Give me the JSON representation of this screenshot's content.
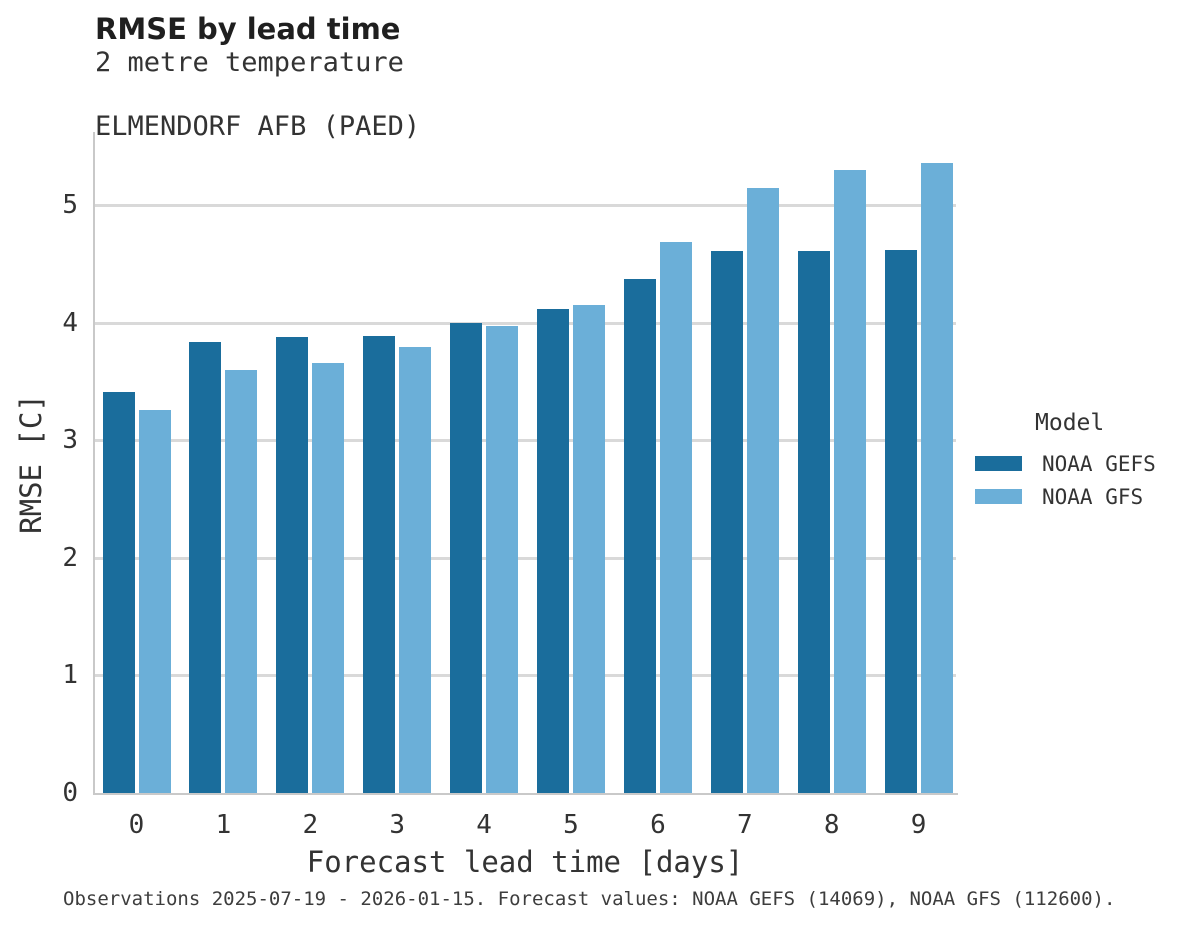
{
  "header": {
    "title": "RMSE by lead time",
    "subtitle1": "2 metre temperature",
    "subtitle2": "ELMENDORF AFB (PAED)"
  },
  "caption": "Observations 2025-07-19 - 2026-01-15. Forecast values: NOAA GEFS (14069), NOAA GFS (112600).",
  "chart_data": {
    "type": "bar",
    "title": "RMSE by lead time",
    "subtitle": [
      "2 metre temperature",
      "ELMENDORF AFB (PAED)"
    ],
    "categories": [
      "0",
      "1",
      "2",
      "3",
      "4",
      "5",
      "6",
      "7",
      "8",
      "9"
    ],
    "series": [
      {
        "name": "NOAA GEFS",
        "color": "#1A6D9C",
        "values": [
          3.41,
          3.84,
          3.88,
          3.89,
          4.0,
          4.12,
          4.37,
          4.61,
          4.61,
          4.62
        ]
      },
      {
        "name": "NOAA GFS",
        "color": "#6BAFD8",
        "values": [
          3.26,
          3.6,
          3.66,
          3.79,
          3.97,
          4.15,
          4.69,
          5.15,
          5.3,
          5.36
        ]
      }
    ],
    "xlabel": "Forecast lead time [days]",
    "ylabel": "RMSE [C]",
    "ylim": [
      0,
      5.64
    ],
    "yticks": [
      0,
      1,
      2,
      3,
      4,
      5
    ],
    "grid": true,
    "legend_title": "Model",
    "legend_position": "right"
  }
}
